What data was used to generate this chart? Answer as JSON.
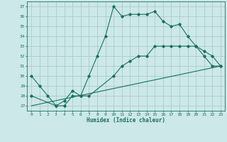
{
  "xlabel": "Humidex (Indice chaleur)",
  "ylabel": "",
  "xlim": [
    -0.5,
    23.5
  ],
  "ylim": [
    26.5,
    37.5
  ],
  "xticks": [
    0,
    1,
    2,
    3,
    4,
    5,
    6,
    7,
    8,
    9,
    10,
    11,
    12,
    13,
    14,
    15,
    16,
    17,
    18,
    19,
    20,
    21,
    22,
    23
  ],
  "yticks": [
    27,
    28,
    29,
    30,
    31,
    32,
    33,
    34,
    35,
    36,
    37
  ],
  "bg_color": "#cce8e8",
  "grid_color": "#aacccc",
  "line_color": "#1a7060",
  "line1_x": [
    0,
    1,
    2,
    3,
    4,
    5,
    6,
    7,
    8,
    9,
    10,
    11,
    12,
    13,
    14,
    15,
    16,
    17,
    18,
    19,
    20,
    21,
    22,
    23
  ],
  "line1_y": [
    30,
    29,
    28,
    27,
    27,
    28,
    28,
    30,
    32,
    34,
    37,
    36,
    36.2,
    36.2,
    36.2,
    36.5,
    35.5,
    35,
    35.2,
    34,
    33,
    32,
    31,
    31
  ],
  "line2_x": [
    0,
    3,
    4,
    5,
    6,
    7,
    10,
    11,
    12,
    13,
    14,
    15,
    16,
    17,
    18,
    19,
    20,
    21,
    22,
    23
  ],
  "line2_y": [
    28,
    27,
    27.5,
    28.5,
    28,
    28,
    30,
    31,
    31.5,
    32,
    32,
    33,
    33,
    33,
    33,
    33,
    33,
    32.5,
    32,
    31
  ],
  "line3_x": [
    0,
    23
  ],
  "line3_y": [
    27,
    31
  ],
  "figsize": [
    3.2,
    2.0
  ],
  "dpi": 100
}
